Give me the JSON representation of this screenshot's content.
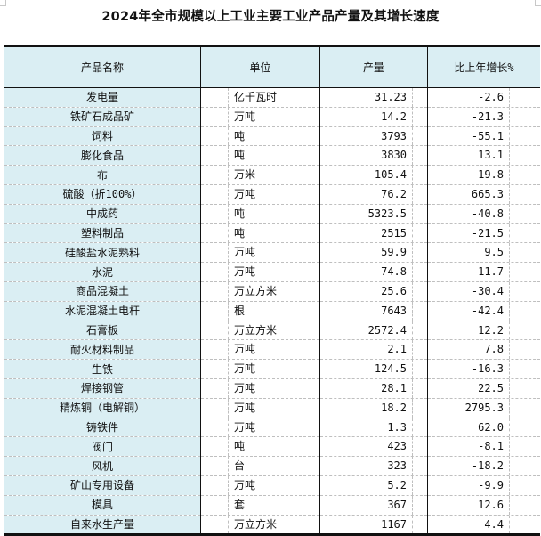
{
  "title": "2024年全市规模以上工业主要工业产品产量及其增长速度",
  "headers": [
    "产品名称",
    "单位",
    "产量",
    "比上年增长%"
  ],
  "colors": {
    "name_column_bg": "#daeef3",
    "header_bg": "#daeef3"
  },
  "rows": [
    {
      "name": "发电量",
      "unit": "亿千瓦时",
      "output": "31.23",
      "growth": "-2.6"
    },
    {
      "name": "铁矿石成品矿",
      "unit": "万吨",
      "output": "14.2",
      "growth": "-21.3"
    },
    {
      "name": "饲料",
      "unit": "吨",
      "output": "3793",
      "growth": "-55.1"
    },
    {
      "name": "膨化食品",
      "unit": "吨",
      "output": "3830",
      "growth": "13.1"
    },
    {
      "name": "布",
      "unit": "万米",
      "output": "105.4",
      "growth": "-19.8"
    },
    {
      "name": "硫酸（折100%）",
      "unit": "万吨",
      "output": "76.2",
      "growth": "665.3"
    },
    {
      "name": "中成药",
      "unit": "吨",
      "output": "5323.5",
      "growth": "-40.8"
    },
    {
      "name": "塑料制品",
      "unit": "吨",
      "output": "2515",
      "growth": "-21.5"
    },
    {
      "name": "硅酸盐水泥熟料",
      "unit": "万吨",
      "output": "59.9",
      "growth": "9.5"
    },
    {
      "name": "水泥",
      "unit": "万吨",
      "output": "74.8",
      "growth": "-11.7"
    },
    {
      "name": "商品混凝土",
      "unit": "万立方米",
      "output": "25.6",
      "growth": "-30.4"
    },
    {
      "name": "水泥混凝土电杆",
      "unit": "根",
      "output": "7643",
      "growth": "-42.4"
    },
    {
      "name": "石膏板",
      "unit": "万立方米",
      "output": "2572.4",
      "growth": "12.2"
    },
    {
      "name": "耐火材料制品",
      "unit": "万吨",
      "output": "2.1",
      "growth": "7.8"
    },
    {
      "name": "生铁",
      "unit": "万吨",
      "output": "124.5",
      "growth": "-16.3"
    },
    {
      "name": "焊接钢管",
      "unit": "万吨",
      "output": "28.1",
      "growth": "22.5"
    },
    {
      "name": "精炼铜（电解铜）",
      "unit": "万吨",
      "output": "18.2",
      "growth": "2795.3"
    },
    {
      "name": "铸铁件",
      "unit": "万吨",
      "output": "1.3",
      "growth": "62.0"
    },
    {
      "name": "阀门",
      "unit": "吨",
      "output": "423",
      "growth": "-8.1"
    },
    {
      "name": "风机",
      "unit": "台",
      "output": "323",
      "growth": "-18.2"
    },
    {
      "name": "矿山专用设备",
      "unit": "万吨",
      "output": "5.2",
      "growth": "-9.9"
    },
    {
      "name": "模具",
      "unit": "套",
      "output": "367",
      "growth": "12.6"
    },
    {
      "name": "自来水生产量",
      "unit": "万立方米",
      "output": "1167",
      "growth": "4.4"
    }
  ]
}
